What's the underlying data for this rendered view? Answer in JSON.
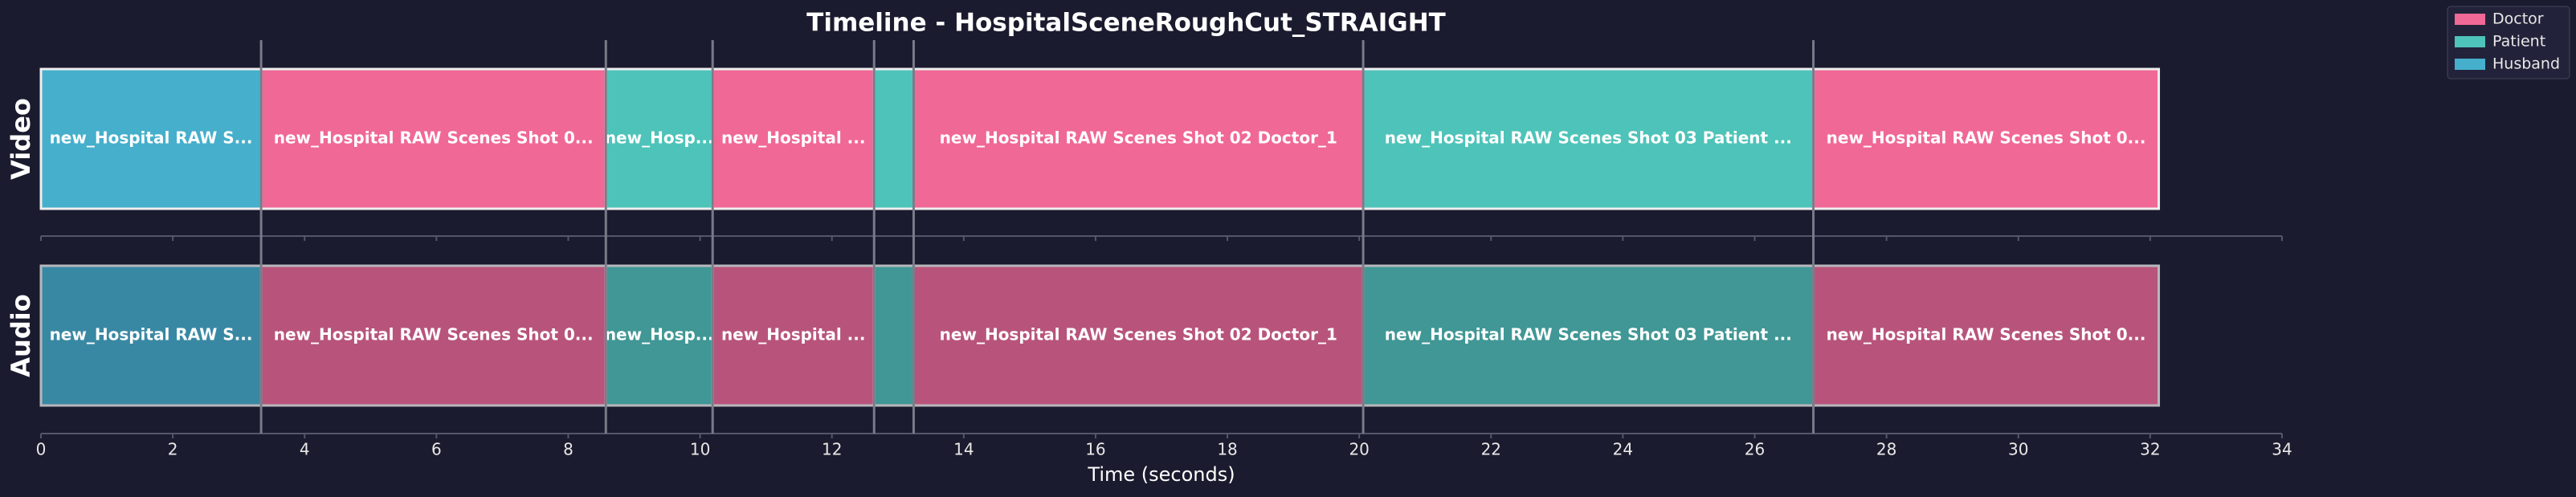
{
  "chart_data": {
    "type": "timeline",
    "title": "Timeline - HospitalSceneRoughCut_STRAIGHT",
    "x_label": "Time (seconds)",
    "tracks": [
      "Video",
      "Audio"
    ],
    "series": [
      {
        "name": "Doctor",
        "color": "#f06896"
      },
      {
        "name": "Patient",
        "color": "#4ec3b9"
      },
      {
        "name": "Husband",
        "color": "#45afcc"
      }
    ],
    "clips": [
      {
        "start": 0,
        "end": 3.34,
        "speaker": "Husband",
        "label": "new_Hospital RAW S..."
      },
      {
        "start": 3.34,
        "end": 8.57,
        "speaker": "Doctor",
        "label": "new_Hospital RAW Scenes Shot 0..."
      },
      {
        "start": 8.57,
        "end": 10.19,
        "speaker": "Patient",
        "label": "new_Hosp..."
      },
      {
        "start": 10.19,
        "end": 12.64,
        "speaker": "Doctor",
        "label": "new_Hospital ..."
      },
      {
        "start": 12.64,
        "end": 13.24,
        "speaker": "Patient",
        "label": null
      },
      {
        "start": 13.24,
        "end": 20.06,
        "speaker": "Doctor",
        "label": "new_Hospital RAW Scenes Shot 02 Doctor_1"
      },
      {
        "start": 20.06,
        "end": 26.89,
        "speaker": "Patient",
        "label": "new_Hospital RAW Scenes Shot 03 Patient ..."
      },
      {
        "start": 26.89,
        "end": 32.13,
        "speaker": "Doctor",
        "label": "new_Hospital RAW Scenes Shot 0..."
      }
    ],
    "xlim": [
      0,
      34
    ],
    "xticks": [
      0,
      2,
      4,
      6,
      8,
      10,
      12,
      14,
      16,
      18,
      20,
      22,
      24,
      26,
      28,
      30,
      32,
      34
    ],
    "legend": "upper right"
  }
}
